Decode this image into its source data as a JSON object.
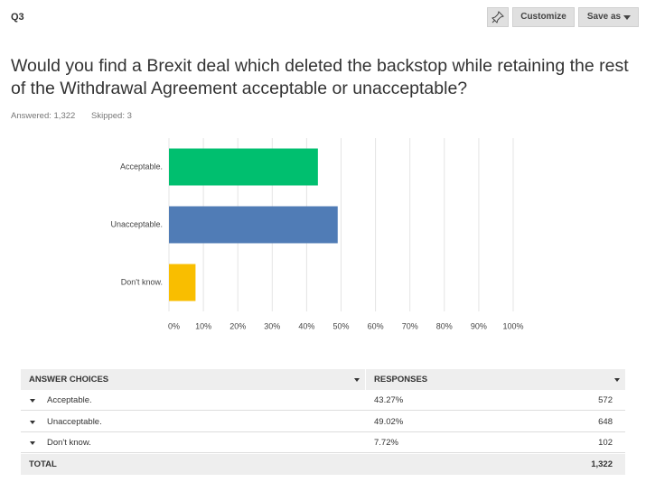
{
  "header": {
    "question": "Q3",
    "buttons": [
      "Customize",
      "Save as"
    ]
  },
  "title": "Would you find a Brexit deal which deleted the backstop while retaining the rest of the Withdrawal Agreement acceptable or unacceptable?",
  "stats": [
    "Answered: 1,322",
    "Skipped: 3"
  ],
  "chart_data": {
    "type": "barh",
    "categories": [
      "Acceptable.",
      "Unacceptable.",
      "Don't know."
    ],
    "values": [
      43.27,
      49.02,
      7.72
    ],
    "colors": [
      "#00bf6f",
      "#507cb6",
      "#f9be00"
    ],
    "xlim": [
      0,
      100
    ],
    "xticks": [
      {
        "value": 0,
        "label": "0%"
      },
      {
        "value": 10,
        "label": "10%"
      },
      {
        "value": 20,
        "label": "20%"
      },
      {
        "value": 30,
        "label": "30%"
      },
      {
        "value": 40,
        "label": "40%"
      },
      {
        "value": 50,
        "label": "50%"
      },
      {
        "value": 60,
        "label": "60%"
      },
      {
        "value": 70,
        "label": "70%"
      },
      {
        "value": 80,
        "label": "80%"
      },
      {
        "value": 90,
        "label": "90%"
      },
      {
        "value": 100,
        "label": "100%"
      }
    ],
    "grid": true
  },
  "table": {
    "header": [
      "ANSWER CHOICES",
      "RESPONSES"
    ],
    "rows": [
      [
        "Acceptable.",
        "43.27%",
        572
      ],
      [
        "Unacceptable.",
        "49.02%",
        648
      ],
      [
        "Don't know.",
        "7.72%",
        102
      ]
    ],
    "total": [
      "TOTAL",
      "1,322"
    ]
  }
}
